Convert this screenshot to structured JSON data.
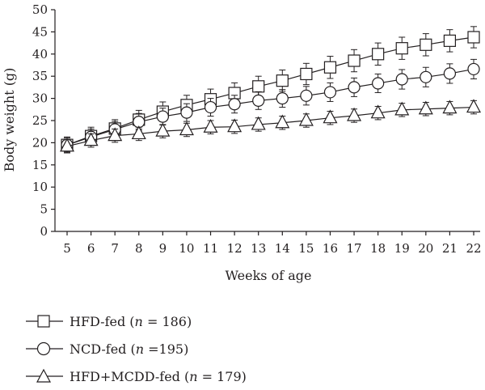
{
  "chart_data": {
    "type": "line",
    "title": "",
    "xlabel": "Weeks of age",
    "ylabel": "Body weight (g)",
    "x": [
      5,
      6,
      7,
      8,
      9,
      10,
      11,
      12,
      13,
      14,
      15,
      16,
      17,
      18,
      19,
      20,
      21,
      22
    ],
    "x_tick_labels": [
      "5",
      "6",
      "7",
      "8",
      "9",
      "10",
      "11",
      "12",
      "13",
      "14",
      "15",
      "16",
      "17",
      "18",
      "19",
      "20",
      "21",
      "22"
    ],
    "ylim": [
      0,
      50
    ],
    "y_ticks": [
      0,
      5,
      10,
      15,
      20,
      25,
      30,
      35,
      40,
      45,
      50
    ],
    "error_bars": true,
    "grid": false,
    "legend_position": "bottom-left",
    "series": [
      {
        "marker": "square",
        "legend_prefix": "HFD-fed (",
        "legend_n": "n",
        "legend_suffix": " = 186)",
        "values": [
          19.5,
          21.5,
          23.2,
          25.2,
          27.0,
          28.5,
          29.8,
          31.2,
          32.7,
          34.0,
          35.5,
          37.0,
          38.5,
          40.0,
          41.3,
          42.1,
          43.0,
          43.8
        ],
        "errors": [
          1.8,
          2.0,
          2.0,
          2.1,
          2.2,
          2.2,
          2.3,
          2.3,
          2.3,
          2.4,
          2.4,
          2.5,
          2.5,
          2.5,
          2.5,
          2.5,
          2.5,
          2.4
        ]
      },
      {
        "marker": "circle",
        "legend_prefix": "NCD-fed (",
        "legend_n": "n",
        "legend_suffix": " =195)",
        "values": [
          19.5,
          21.3,
          23.0,
          24.7,
          25.9,
          26.8,
          28.0,
          28.7,
          29.5,
          30.0,
          30.6,
          31.4,
          32.5,
          33.4,
          34.3,
          34.8,
          35.6,
          36.6
        ],
        "errors": [
          1.6,
          1.8,
          1.8,
          1.9,
          1.9,
          2.0,
          2.0,
          2.0,
          2.0,
          2.0,
          2.1,
          2.1,
          2.1,
          2.1,
          2.2,
          2.2,
          2.2,
          2.2
        ]
      },
      {
        "marker": "triangle",
        "legend_prefix": "HFD+MCDD-fed (",
        "legend_n": "n",
        "legend_suffix": " = 179)",
        "values": [
          19.2,
          20.5,
          21.6,
          22.0,
          22.6,
          22.9,
          23.5,
          23.6,
          24.1,
          24.5,
          25.0,
          25.6,
          26.1,
          26.7,
          27.4,
          27.6,
          27.8,
          28.0
        ],
        "errors": [
          1.5,
          1.5,
          1.5,
          1.5,
          1.5,
          1.5,
          1.5,
          1.5,
          1.5,
          1.5,
          1.5,
          1.5,
          1.5,
          1.5,
          1.5,
          1.5,
          1.5,
          1.5
        ]
      }
    ]
  }
}
